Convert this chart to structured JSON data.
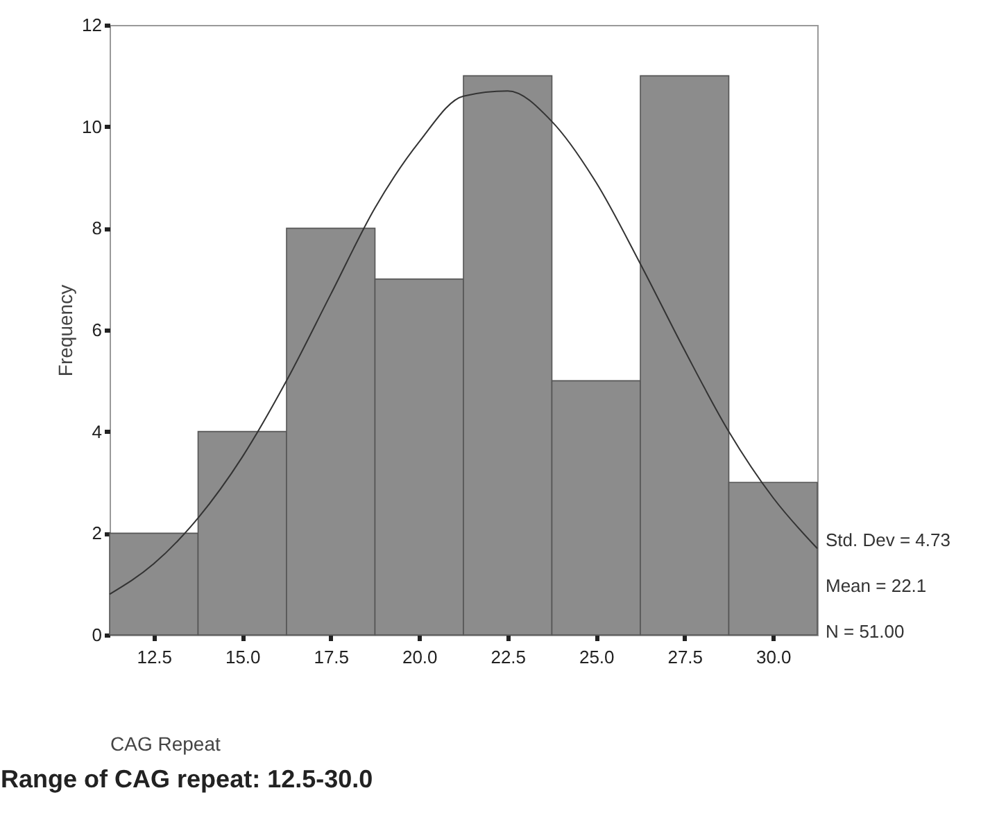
{
  "chart_data": {
    "type": "histogram",
    "title": "Range of CAG repeat: 12.5-30.0",
    "xlabel": "CAG Repeat",
    "ylabel": "Frequency",
    "bins": [
      11.25,
      13.75,
      16.25,
      18.75,
      21.25,
      23.75,
      26.25,
      28.75,
      31.25
    ],
    "values": [
      2,
      4,
      8,
      7,
      11,
      5,
      11,
      3
    ],
    "color": "#8c8c8c",
    "series": [
      {
        "type": "line",
        "color": "#333333",
        "x": [
          11.25,
          12.5,
          13.75,
          15,
          16.25,
          17.5,
          18.75,
          20,
          21.25,
          22.5,
          23.75,
          25,
          26.25,
          27.5,
          28.75,
          30,
          31.25
        ],
        "values": [
          0.8,
          1.4,
          2.3,
          3.5,
          5.0,
          6.7,
          8.4,
          9.7,
          10.6,
          10.7,
          10.1,
          8.9,
          7.3,
          5.6,
          4.0,
          2.7,
          1.7
        ]
      }
    ],
    "xlim": [
      11.25,
      31.25
    ],
    "xticks": [
      {
        "value": 12.5,
        "label": "12.5"
      },
      {
        "value": 15,
        "label": "15.0"
      },
      {
        "value": 17.5,
        "label": "17.5"
      },
      {
        "value": 20,
        "label": "20.0"
      },
      {
        "value": 22.5,
        "label": "22.5"
      },
      {
        "value": 25,
        "label": "25.0"
      },
      {
        "value": 27.5,
        "label": "27.5"
      },
      {
        "value": 30,
        "label": "30.0"
      }
    ],
    "ylim": [
      0,
      12
    ],
    "yticks": [
      0,
      2,
      4,
      6,
      8,
      10,
      12
    ],
    "annotations": [
      "Std. Dev = 4.73",
      "Mean = 22.1",
      "N = 51.00"
    ]
  }
}
